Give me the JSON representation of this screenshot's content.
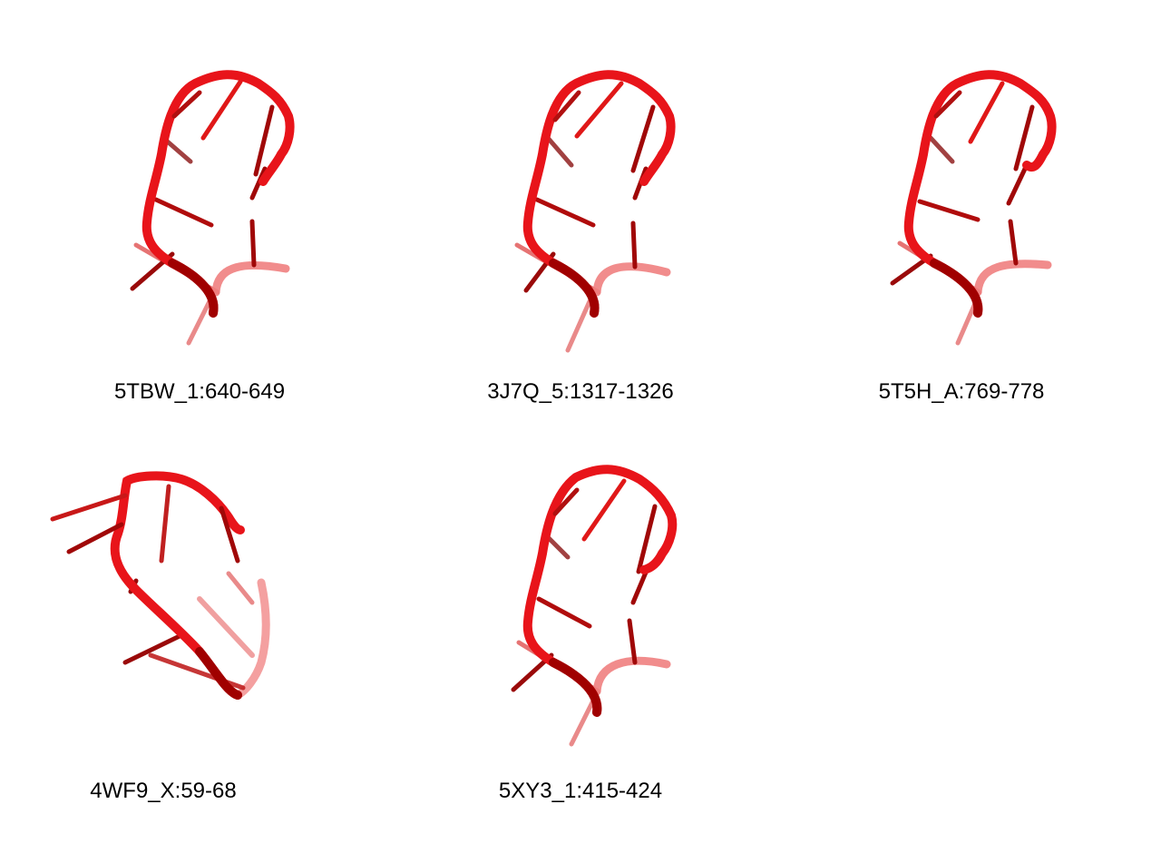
{
  "structures": [
    {
      "id": "5TBW_1:640-649"
    },
    {
      "id": "3J7Q_5:1317-1326"
    },
    {
      "id": "5T5H_A:769-778"
    },
    {
      "id": "4WF9_X:59-68"
    },
    {
      "id": "5XY3_1:415-424"
    }
  ],
  "colors": {
    "backbone": "#e8141a",
    "backbone_dark": "#a00000",
    "base": "#b80c0c",
    "base_faded": "#e98a8a"
  }
}
